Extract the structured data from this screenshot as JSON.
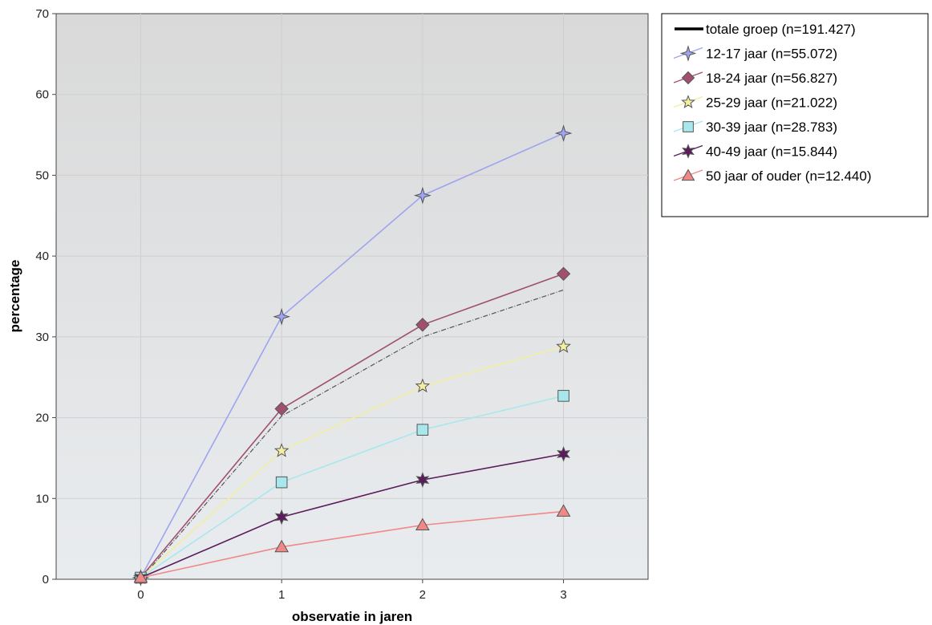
{
  "chart_data": {
    "type": "line",
    "title": "",
    "xlabel": "observatie in jaren",
    "ylabel": "percentage",
    "x": [
      0,
      1,
      2,
      3
    ],
    "xlim": [
      -0.6,
      3.6
    ],
    "ylim": [
      0,
      70
    ],
    "yticks": [
      0,
      10,
      20,
      30,
      40,
      50,
      60,
      70
    ],
    "xticks": [
      0,
      1,
      2,
      3
    ],
    "grid": true,
    "legend_position": "right",
    "series": [
      {
        "name": "totale groep (n=191.427)",
        "values": [
          0,
          20.2,
          30,
          35.8
        ],
        "color": "#555555",
        "marker": "none",
        "dashed": true
      },
      {
        "name": "12-17 jaar (n=55.072)",
        "values": [
          0.2,
          32.5,
          47.5,
          55.2
        ],
        "color": "#9ea4ef",
        "marker": "star4"
      },
      {
        "name": "18-24 jaar (n=56.827)",
        "values": [
          0.2,
          21.1,
          31.5,
          37.8
        ],
        "color": "#a0506e",
        "marker": "diamond"
      },
      {
        "name": "25-29 jaar (n=21.022)",
        "values": [
          0.2,
          15.9,
          23.9,
          28.8
        ],
        "color": "#f2eea2",
        "marker": "star5"
      },
      {
        "name": "30-39 jaar (n=28.783)",
        "values": [
          0.2,
          12,
          18.5,
          22.7
        ],
        "color": "#a8e8ec",
        "marker": "square"
      },
      {
        "name": "40-49 jaar (n=15.844)",
        "values": [
          0.2,
          7.7,
          12.3,
          15.5
        ],
        "color": "#5c1b5c",
        "marker": "star6"
      },
      {
        "name": "50 jaar of ouder (n=12.440)",
        "values": [
          0.2,
          4,
          6.7,
          8.4
        ],
        "color": "#f08888",
        "marker": "triangle"
      }
    ]
  }
}
